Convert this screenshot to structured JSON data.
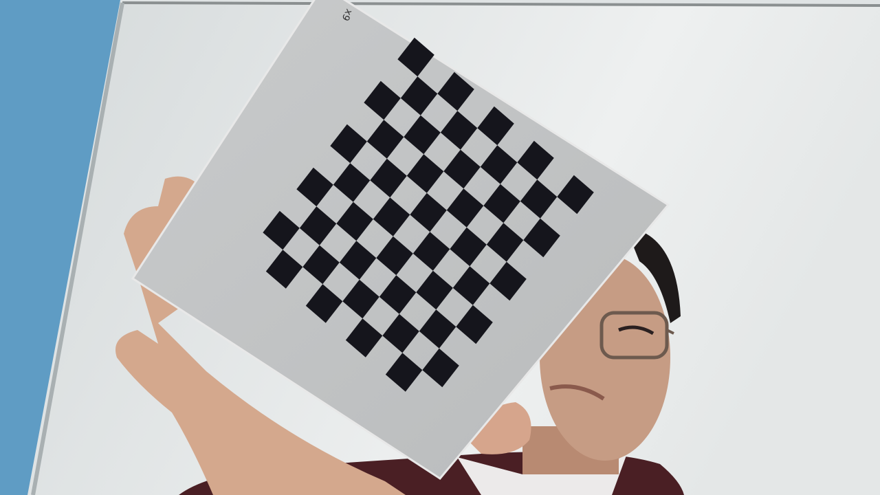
{
  "board": {
    "label": "x9"
  }
}
